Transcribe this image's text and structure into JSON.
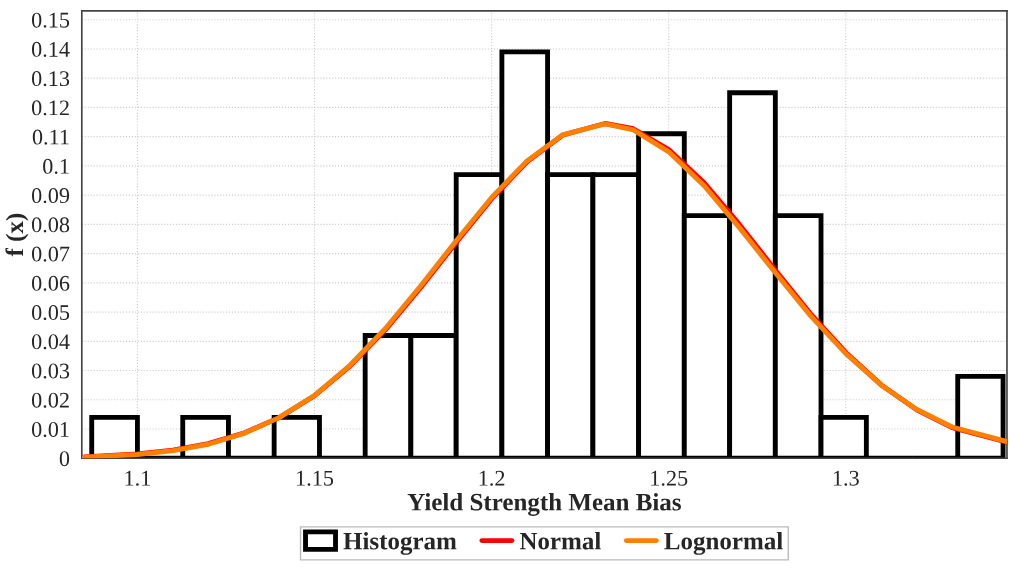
{
  "chart_data": {
    "type": "histogram",
    "xlabel": "Yield Strength Mean Bias",
    "ylabel": "f (x)",
    "xlim": [
      1.0843,
      1.3455
    ],
    "ylim": [
      0,
      0.153
    ],
    "xticks": [
      1.1,
      1.15,
      1.2,
      1.25,
      1.3
    ],
    "yticks": [
      0,
      0.01,
      0.02,
      0.03,
      0.04,
      0.05,
      0.06,
      0.07,
      0.08,
      0.09,
      0.1,
      0.11,
      0.12,
      0.13,
      0.14,
      0.15
    ],
    "grid": true,
    "legend": "bottom",
    "series": [
      {
        "name": "Histogram",
        "color": "#000000",
        "bins": [
          1.0871,
          1.1,
          1.1128,
          1.1257,
          1.1386,
          1.1514,
          1.1643,
          1.1772,
          1.19,
          1.2029,
          1.2158,
          1.2286,
          1.2415,
          1.2544,
          1.2672,
          1.2801,
          1.293,
          1.3058,
          1.3187,
          1.3316,
          1.3444
        ],
        "values": [
          0.014,
          0,
          0.014,
          0,
          0.014,
          0,
          0.042,
          0.042,
          0.097,
          0.139,
          0.097,
          0.097,
          0.111,
          0.083,
          0.125,
          0.083,
          0.014,
          0,
          0,
          0.028
        ]
      },
      {
        "type": "line",
        "name": "Normal",
        "color": "#ff0000",
        "x": [
          1.085,
          1.1,
          1.11,
          1.12,
          1.13,
          1.14,
          1.15,
          1.16,
          1.17,
          1.18,
          1.19,
          1.2,
          1.21,
          1.22,
          1.232,
          1.24,
          1.25,
          1.26,
          1.27,
          1.28,
          1.29,
          1.3,
          1.31,
          1.32,
          1.33,
          1.3455
        ],
        "values": [
          0.0005,
          0.0015,
          0.0028,
          0.005,
          0.0086,
          0.0139,
          0.0214,
          0.0315,
          0.0439,
          0.0584,
          0.0738,
          0.0887,
          0.1014,
          0.1105,
          0.1145,
          0.1127,
          0.1056,
          0.0942,
          0.0799,
          0.0645,
          0.0495,
          0.0362,
          0.0251,
          0.0166,
          0.0105,
          0.0055
        ]
      },
      {
        "type": "line",
        "name": "Lognormal",
        "color": "#ff8000",
        "x": [
          1.085,
          1.1,
          1.11,
          1.12,
          1.13,
          1.14,
          1.15,
          1.16,
          1.17,
          1.18,
          1.19,
          1.2,
          1.21,
          1.22,
          1.232,
          1.24,
          1.25,
          1.26,
          1.27,
          1.28,
          1.29,
          1.3,
          1.31,
          1.32,
          1.33,
          1.3455
        ],
        "values": [
          0.0004,
          0.0013,
          0.0026,
          0.0048,
          0.0085,
          0.0139,
          0.0215,
          0.0318,
          0.0444,
          0.059,
          0.0744,
          0.0892,
          0.1017,
          0.1106,
          0.1144,
          0.1123,
          0.1048,
          0.0932,
          0.0788,
          0.0636,
          0.0488,
          0.0358,
          0.025,
          0.0167,
          0.0107,
          0.0057
        ]
      }
    ]
  }
}
